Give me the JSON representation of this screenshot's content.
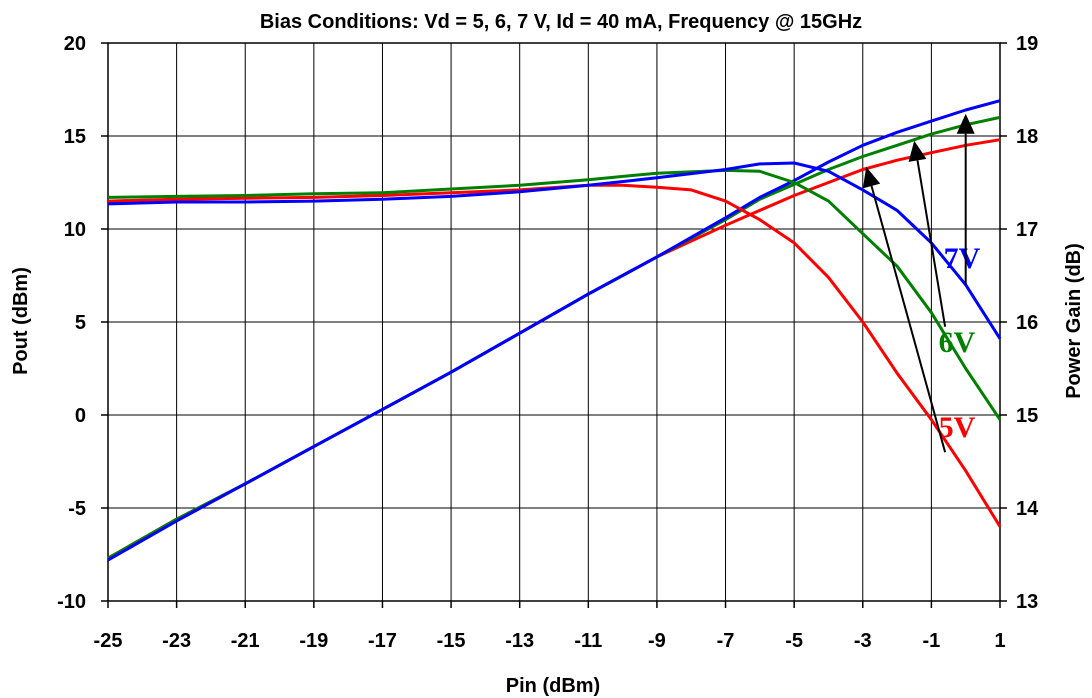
{
  "chart_data": {
    "type": "line",
    "title": "Bias Conditions:  Vd = 5, 6, 7 V, Id = 40 mA, Frequency @ 15GHz",
    "xlabel": "Pin (dBm)",
    "ylabel": "Pout (dBm)",
    "y2label": "Power Gain (dB)",
    "xlim": [
      -25,
      1
    ],
    "ylim": [
      -10,
      20
    ],
    "y2lim": [
      13,
      19
    ],
    "x_ticks": [
      "-25",
      "-23",
      "-21",
      "-19",
      "-17",
      "-15",
      "-13",
      "-11",
      "-9",
      "-7",
      "-5",
      "-3",
      "-1",
      "1"
    ],
    "y_ticks": [
      "-10",
      "-5",
      "0",
      "5",
      "10",
      "15",
      "20"
    ],
    "y2_ticks": [
      "13",
      "14",
      "15",
      "16",
      "17",
      "18",
      "19"
    ],
    "grid": true,
    "pout_series": [
      {
        "color": "#ff0000",
        "x": [
          -25,
          -23,
          -21,
          -19,
          -17,
          -15,
          -13,
          -11,
          -9,
          -7,
          -6,
          -5,
          -4,
          -3,
          -2,
          -1,
          0,
          1
        ],
        "y": [
          -7.7,
          -5.6,
          -3.7,
          -1.7,
          0.3,
          2.3,
          4.4,
          6.5,
          8.5,
          10.2,
          11.0,
          11.8,
          12.5,
          13.2,
          13.7,
          14.1,
          14.5,
          14.8
        ]
      },
      {
        "color": "#008000",
        "x": [
          -25,
          -23,
          -21,
          -19,
          -17,
          -15,
          -13,
          -11,
          -9,
          -7,
          -6,
          -5,
          -4,
          -3,
          -2,
          -1,
          0,
          1
        ],
        "y": [
          -7.7,
          -5.6,
          -3.7,
          -1.7,
          0.3,
          2.3,
          4.4,
          6.5,
          8.5,
          10.5,
          11.6,
          12.4,
          13.2,
          13.9,
          14.5,
          15.1,
          15.6,
          16.0
        ]
      },
      {
        "color": "#0000ff",
        "x": [
          -25,
          -23,
          -21,
          -19,
          -17,
          -15,
          -13,
          -11,
          -9,
          -7,
          -6,
          -5,
          -4,
          -3,
          -2,
          -1,
          0,
          1
        ],
        "y": [
          -7.8,
          -5.7,
          -3.7,
          -1.7,
          0.3,
          2.3,
          4.4,
          6.5,
          8.5,
          10.6,
          11.7,
          12.6,
          13.6,
          14.5,
          15.2,
          15.8,
          16.4,
          16.9
        ]
      }
    ],
    "gain_series": [
      {
        "color": "#ff0000",
        "x": [
          -25,
          -23,
          -21,
          -19,
          -17,
          -15,
          -13,
          -11,
          -10,
          -9,
          -8,
          -7,
          -6,
          -5,
          -4,
          -3,
          -2,
          -1,
          0,
          1
        ],
        "y": [
          17.3,
          17.32,
          17.33,
          17.34,
          17.36,
          17.39,
          17.42,
          17.47,
          17.47,
          17.45,
          17.42,
          17.3,
          17.1,
          16.85,
          16.48,
          16.0,
          15.45,
          14.95,
          14.4,
          13.8
        ]
      },
      {
        "color": "#008000",
        "x": [
          -25,
          -23,
          -21,
          -19,
          -17,
          -15,
          -13,
          -11,
          -9,
          -7,
          -6,
          -5,
          -4,
          -3,
          -2,
          -1,
          0,
          1
        ],
        "y": [
          17.34,
          17.35,
          17.36,
          17.38,
          17.39,
          17.43,
          17.47,
          17.53,
          17.6,
          17.63,
          17.62,
          17.5,
          17.3,
          16.95,
          16.6,
          16.1,
          15.5,
          14.95
        ]
      },
      {
        "color": "#0000ff",
        "x": [
          -25,
          -23,
          -21,
          -19,
          -17,
          -15,
          -13,
          -11,
          -9,
          -7,
          -6,
          -5,
          -4,
          -3,
          -2,
          -1,
          0,
          1
        ],
        "y": [
          17.27,
          17.29,
          17.29,
          17.3,
          17.32,
          17.35,
          17.4,
          17.47,
          17.55,
          17.64,
          17.7,
          17.71,
          17.62,
          17.42,
          17.2,
          16.85,
          16.4,
          15.82
        ]
      }
    ],
    "annotations": [
      {
        "text": "7V",
        "color": "#0000ff"
      },
      {
        "text": "6V",
        "color": "#008000"
      },
      {
        "text": "5V",
        "color": "#ff0000"
      }
    ],
    "arrows": [
      {
        "from": [
          0.0,
          16.4
        ],
        "to": [
          0.0,
          18.24
        ]
      },
      {
        "from": [
          -0.6,
          15.95
        ],
        "to": [
          -1.5,
          17.95
        ]
      },
      {
        "from": [
          -0.6,
          14.6
        ],
        "to": [
          -2.9,
          17.67
        ]
      }
    ]
  }
}
